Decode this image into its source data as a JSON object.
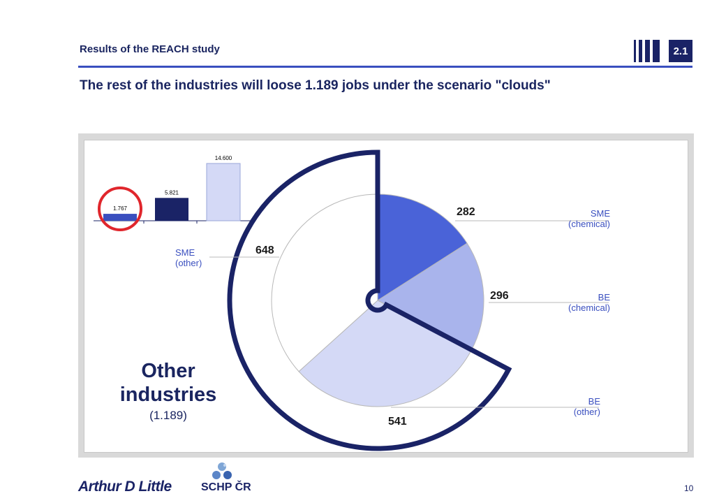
{
  "header": {
    "section_title": "Results of the REACH study",
    "section_number": "2.1",
    "headline": "The rest of the industries will loose 1.189 jobs under the scenario \"clouds\""
  },
  "colors": {
    "navy": "#1a2366",
    "sme_chemical": "#4a63d8",
    "be_chemical": "#a9b4ec",
    "be_other": "#d4d9f6",
    "sme_other": "#ffffff",
    "accent_circle": "#e0262c"
  },
  "chart_data": [
    {
      "type": "bar",
      "categories": [
        "",
        "",
        ""
      ],
      "values": [
        1767,
        5821,
        14600
      ],
      "value_labels": [
        "1.767",
        "5.821",
        "14.600"
      ],
      "colors": [
        "#3a4fbf",
        "#1a2366",
        "#d4d9f6"
      ],
      "highlighted_index": 0
    },
    {
      "type": "pie",
      "slices": [
        {
          "label": "SME\n(chemical)",
          "value": 282,
          "value_label": "282",
          "color": "#4a63d8"
        },
        {
          "label": "BE\n(chemical)",
          "value": 296,
          "value_label": "296",
          "color": "#a9b4ec"
        },
        {
          "label": "BE\n(other)",
          "value": 541,
          "value_label": "541",
          "color": "#d4d9f6"
        },
        {
          "label": "SME\n(other)",
          "value": 648,
          "value_label": "648",
          "color": "#ffffff"
        }
      ],
      "highlight": {
        "title": "Other industries",
        "value": "(1.189)",
        "slices": [
          "BE\n(other)",
          "SME\n(other)"
        ]
      }
    }
  ],
  "labels": {
    "sme_chemical": {
      "line1": "SME",
      "line2": "(chemical)"
    },
    "be_chemical": {
      "line1": "BE",
      "line2": "(chemical)"
    },
    "be_other": {
      "line1": "BE",
      "line2": "(other)"
    },
    "sme_other": {
      "line1": "SME",
      "line2": "(other)"
    }
  },
  "footer": {
    "brand": "Arthur D Little",
    "partner": "SCHP ČR",
    "page_number": "10"
  }
}
